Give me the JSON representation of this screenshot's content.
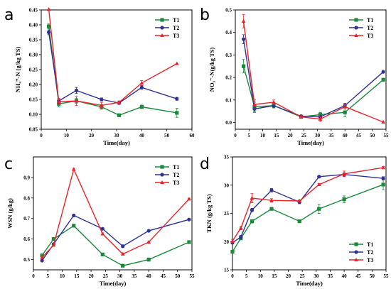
{
  "chart_data": [
    {
      "id": "a",
      "type": "line",
      "panel_label": "a",
      "xlabel": "Time(day)",
      "ylabel": "NH₄⁺-N (g/kg TS)",
      "xlim": [
        0,
        60
      ],
      "ylim": [
        0.05,
        0.45
      ],
      "xticks": [
        0,
        10,
        20,
        30,
        40,
        50,
        60
      ],
      "yticks": [
        0.05,
        0.1,
        0.15,
        0.2,
        0.25,
        0.3,
        0.35,
        0.4,
        0.45
      ],
      "ytick_decimals": 2,
      "legend_position": "top-right",
      "x": [
        3,
        7,
        14,
        24,
        31,
        40,
        54
      ],
      "series": [
        {
          "name": "T1",
          "color": "#1a8a3a",
          "marker": "square",
          "values": [
            0.395,
            0.135,
            0.145,
            0.125,
            0.097,
            0.125,
            0.105
          ],
          "errors": [
            0.008,
            0.01,
            0.008,
            0.008,
            0.004,
            0.006,
            0.015
          ]
        },
        {
          "name": "T2",
          "color": "#2e3192",
          "marker": "circle",
          "values": [
            0.375,
            0.145,
            0.18,
            0.15,
            0.138,
            0.19,
            0.152
          ],
          "errors": [
            0.008,
            0.008,
            0.01,
            0.005,
            0.005,
            0.006,
            0.005
          ]
        },
        {
          "name": "T3",
          "color": "#e8242a",
          "marker": "triangle",
          "values": [
            0.452,
            0.142,
            0.145,
            0.13,
            0.14,
            0.205,
            0.27
          ],
          "errors": [
            0,
            0.008,
            0.015,
            0.01,
            0.005,
            0.008,
            0
          ]
        }
      ]
    },
    {
      "id": "b",
      "type": "line",
      "panel_label": "b",
      "xlabel": "Time(day)",
      "ylabel": "NO₃⁻-N(g/kg TS)",
      "xlim": [
        0,
        55
      ],
      "ylim": [
        -0.03,
        0.5
      ],
      "xticks": [
        0,
        5,
        10,
        15,
        20,
        25,
        30,
        35,
        40,
        45,
        50,
        55
      ],
      "yticks": [
        0.0,
        0.1,
        0.2,
        0.3,
        0.4,
        0.5
      ],
      "ytick_decimals": 1,
      "legend_position": "top-right",
      "x": [
        3,
        7,
        14,
        24,
        31,
        40,
        54
      ],
      "series": [
        {
          "name": "T1",
          "color": "#1a8a3a",
          "marker": "square",
          "values": [
            0.25,
            0.07,
            0.075,
            0.025,
            0.035,
            0.045,
            0.19
          ],
          "errors": [
            0.03,
            0.02,
            0.01,
            0.005,
            0.01,
            0.02,
            0.005
          ]
        },
        {
          "name": "T2",
          "color": "#2e3192",
          "marker": "circle",
          "values": [
            0.37,
            0.06,
            0.075,
            0.028,
            0.025,
            0.075,
            0.225
          ],
          "errors": [
            0.02,
            0.015,
            0.01,
            0.005,
            0.005,
            0.01,
            0
          ]
        },
        {
          "name": "T3",
          "color": "#e8242a",
          "marker": "triangle",
          "values": [
            0.45,
            0.08,
            0.09,
            0.025,
            0.015,
            0.07,
            0.002
          ],
          "errors": [
            0.03,
            0.02,
            0.01,
            0.005,
            0.01,
            0.01,
            0
          ]
        }
      ]
    },
    {
      "id": "c",
      "type": "line",
      "panel_label": "c",
      "xlabel": "Time(day)",
      "ylabel": "WSN (g/kg)",
      "xlim": [
        0,
        55
      ],
      "ylim": [
        0.45,
        1.0
      ],
      "xticks": [
        0,
        5,
        10,
        15,
        20,
        25,
        30,
        35,
        40,
        45,
        50,
        55
      ],
      "yticks": [
        0.5,
        0.6,
        0.7,
        0.8,
        0.9
      ],
      "ytick_decimals": 1,
      "legend_position": "top-right",
      "x": [
        3,
        7,
        14,
        24,
        31,
        40,
        54
      ],
      "series": [
        {
          "name": "T1",
          "color": "#1a8a3a",
          "marker": "square",
          "values": [
            0.52,
            0.6,
            0.665,
            0.525,
            0.47,
            0.5,
            0.585
          ],
          "errors": [
            0.005,
            0.005,
            0.005,
            0.004,
            0.004,
            0.008,
            0.005
          ]
        },
        {
          "name": "T2",
          "color": "#2e3192",
          "marker": "circle",
          "values": [
            0.495,
            0.575,
            0.715,
            0.65,
            0.565,
            0.64,
            0.695
          ],
          "errors": [
            0.005,
            0.005,
            0.005,
            0.005,
            0.005,
            0.004,
            0.005
          ]
        },
        {
          "name": "T3",
          "color": "#e8242a",
          "marker": "triangle",
          "values": [
            0.51,
            0.57,
            0.94,
            0.625,
            0.527,
            0.585,
            0.795
          ],
          "errors": [
            0.005,
            0.005,
            0.005,
            0.005,
            0.005,
            0.005,
            0.004
          ]
        }
      ]
    },
    {
      "id": "d",
      "type": "line",
      "panel_label": "d",
      "xlabel": "Time(day)",
      "ylabel": "TKN (g/kg TS)",
      "xlim": [
        0,
        55
      ],
      "ylim": [
        15,
        35
      ],
      "xticks": [
        0,
        5,
        10,
        15,
        20,
        25,
        30,
        35,
        40,
        45,
        50,
        55
      ],
      "yticks": [
        15,
        20,
        25,
        30,
        35
      ],
      "ytick_decimals": 0,
      "legend_position": "bottom-right",
      "x": [
        0,
        3,
        7,
        14,
        24,
        31,
        40,
        54
      ],
      "series": [
        {
          "name": "T1",
          "color": "#1a8a3a",
          "marker": "square",
          "values": [
            18.2,
            20.6,
            23.6,
            25.8,
            23.6,
            25.8,
            27.5,
            30.1
          ],
          "errors": [
            0.2,
            0.3,
            0.3,
            0.2,
            0.2,
            0.8,
            0.6,
            0.9
          ]
        },
        {
          "name": "T2",
          "color": "#2e3192",
          "marker": "circle",
          "values": [
            19.8,
            20.8,
            25.6,
            29.1,
            27.0,
            31.5,
            31.9,
            31.2
          ],
          "errors": [
            0.2,
            0.3,
            0.3,
            0.3,
            0.3,
            0.2,
            0.3,
            0.3
          ]
        },
        {
          "name": "T3",
          "color": "#e8242a",
          "marker": "triangle",
          "values": [
            20.1,
            22.4,
            27.7,
            27.3,
            27.2,
            30.1,
            32.0,
            33.1
          ],
          "errors": [
            0.3,
            0.3,
            0.8,
            0.3,
            0.2,
            0.2,
            0.5,
            0.2
          ]
        }
      ]
    }
  ]
}
